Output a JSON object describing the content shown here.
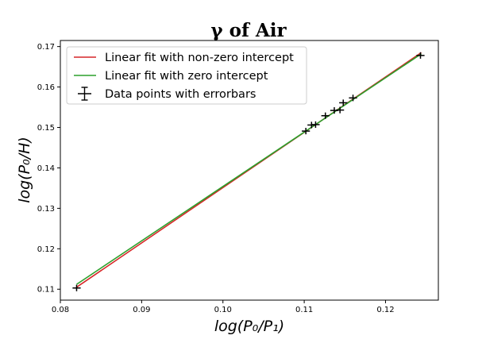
{
  "chart_data": {
    "type": "scatter",
    "title": "γ of Air",
    "xlabel": "log(P₀/P₁)",
    "ylabel": "log(P₀/H)",
    "xlim": [
      0.08,
      0.1265
    ],
    "ylim": [
      0.1073,
      0.1715
    ],
    "xticks": [
      0.08,
      0.09,
      0.1,
      0.11,
      0.12
    ],
    "xtick_labels": [
      "0.08",
      "0.09",
      "0.10",
      "0.11",
      "0.12"
    ],
    "yticks": [
      0.11,
      0.12,
      0.13,
      0.14,
      0.15,
      0.16,
      0.17
    ],
    "ytick_labels": [
      "0.11",
      "0.12",
      "0.13",
      "0.14",
      "0.15",
      "0.16",
      "0.17"
    ],
    "grid": false,
    "legend_position": "top-left",
    "series": [
      {
        "name": "Linear fit with non-zero intercept",
        "kind": "line",
        "color": "#d62728",
        "points": [
          [
            0.082,
            0.1105
          ],
          [
            0.1244,
            0.1685
          ]
        ]
      },
      {
        "name": "Linear fit with zero intercept",
        "kind": "line",
        "color": "#2ca02c",
        "points": [
          [
            0.082,
            0.1112
          ],
          [
            0.1244,
            0.1682
          ]
        ]
      },
      {
        "name": "Data points with errorbars",
        "kind": "errorbar",
        "color": "#000000",
        "x": [
          0.082,
          0.1102,
          0.1109,
          0.1114,
          0.1126,
          0.1137,
          0.1144,
          0.1148,
          0.116,
          0.1243
        ],
        "y": [
          0.1103,
          0.1491,
          0.1506,
          0.1507,
          0.1529,
          0.1542,
          0.1543,
          0.1561,
          0.1573,
          0.1678
        ],
        "xerr": 0.0005,
        "yerr": 0.0008
      }
    ]
  }
}
